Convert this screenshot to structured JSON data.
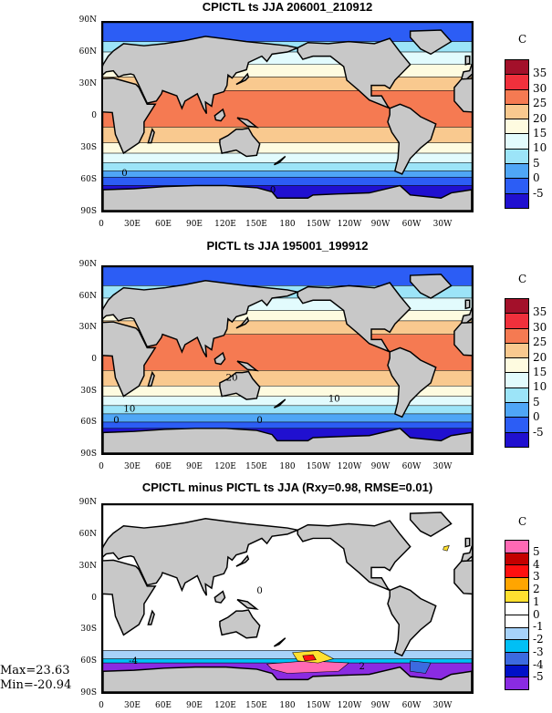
{
  "panels": [
    {
      "title": "CPICTL ts JJA 206001_210912",
      "units": "C",
      "levels": [
        "35",
        "30",
        "25",
        "20",
        "15",
        "10",
        "5",
        "0",
        "-5"
      ],
      "colors": [
        "#a3102a",
        "#f0303c",
        "#f57a52",
        "#f9c98f",
        "#fefbe0",
        "#e2fbfd",
        "#9ce4f8",
        "#4fa6f6",
        "#2c5df5",
        "#2010d0"
      ],
      "contour_labels": [
        "0",
        "0"
      ]
    },
    {
      "title": "PICTL ts JJA 195001_199912",
      "units": "C",
      "levels": [
        "35",
        "30",
        "25",
        "20",
        "15",
        "10",
        "5",
        "0",
        "-5"
      ],
      "colors": [
        "#a3102a",
        "#f0303c",
        "#f57a52",
        "#f9c98f",
        "#fefbe0",
        "#e2fbfd",
        "#9ce4f8",
        "#4fa6f6",
        "#2c5df5",
        "#2010d0"
      ],
      "contour_labels": [
        "20",
        "10",
        "10",
        "0",
        "0"
      ]
    },
    {
      "title": "CPICTL minus PICTL ts JJA (Rxy=0.98, RMSE=0.01)",
      "units": "C",
      "levels": [
        "5",
        "4",
        "3",
        "2",
        "1",
        "0",
        "-1",
        "-2",
        "-3",
        "-4",
        "-5"
      ],
      "colors": [
        "#ff69b4",
        "#c40000",
        "#ff1010",
        "#ffa500",
        "#ffe030",
        "#ffffff",
        "#ffffff",
        "#a6d2fa",
        "#00bff5",
        "#3c6ae0",
        "#0010c8",
        "#8a2be2"
      ],
      "contour_labels": [
        "0",
        "-4",
        "2"
      ]
    }
  ],
  "y_ticks": [
    "90N",
    "60N",
    "30N",
    "0",
    "30S",
    "60S",
    "90S"
  ],
  "x_ticks": [
    "0",
    "30E",
    "60E",
    "90E",
    "120E",
    "150E",
    "180",
    "150W",
    "120W",
    "90W",
    "60W",
    "30W"
  ],
  "stats": {
    "max": "Max=23.63",
    "min": "Min=-20.94"
  }
}
